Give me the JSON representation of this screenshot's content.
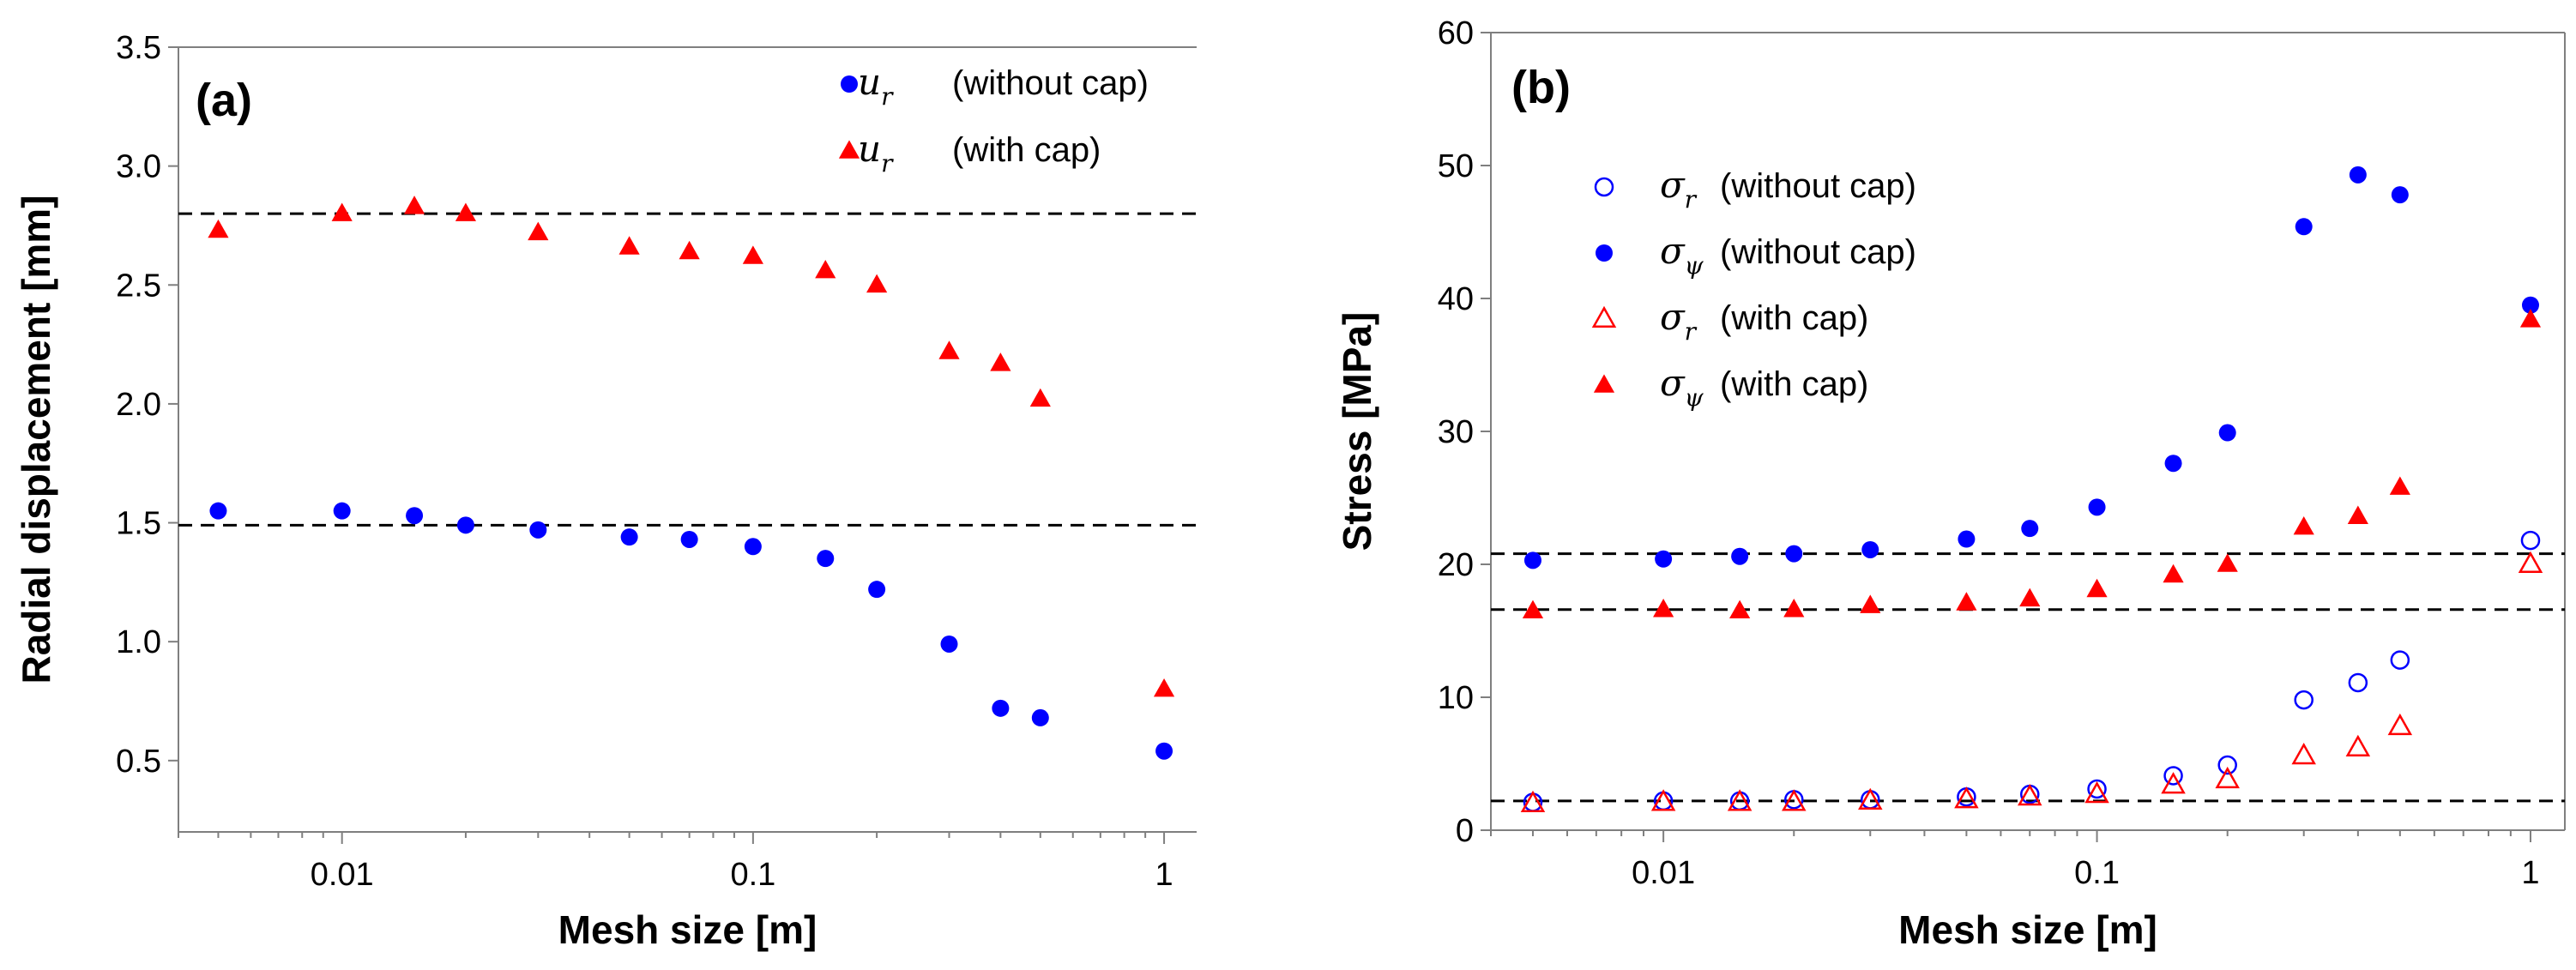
{
  "chart_data": [
    {
      "type": "scatter",
      "panel_label": "(a)",
      "xlabel": "Mesh size [m]",
      "ylabel": "Radial displacement [mm]",
      "x_scale": "log",
      "xlim": [
        0.004,
        1.2
      ],
      "ylim": [
        0.2,
        3.5
      ],
      "x_ticks": [
        0.01,
        0.1,
        1
      ],
      "x_tick_labels": [
        "0.01",
        "0.1",
        "1"
      ],
      "y_ticks": [
        0.5,
        1.0,
        1.5,
        2.0,
        2.5,
        3.0,
        3.5
      ],
      "y_tick_labels": [
        "0.5",
        "1.0",
        "1.5",
        "2.0",
        "2.5",
        "3.0",
        "3.5"
      ],
      "grid": false,
      "legend_position": "top-right",
      "reference_lines": [
        1.49,
        2.8
      ],
      "series": [
        {
          "name_symbol": "u",
          "name_sub": "r",
          "name_text": "(without cap)",
          "marker": "filled-circle",
          "color": "#0000ff",
          "x": [
            0.005,
            0.01,
            0.015,
            0.02,
            0.03,
            0.05,
            0.07,
            0.1,
            0.15,
            0.2,
            0.3,
            0.4,
            0.5,
            1
          ],
          "y": [
            1.55,
            1.55,
            1.53,
            1.49,
            1.47,
            1.44,
            1.43,
            1.4,
            1.35,
            1.22,
            0.99,
            0.72,
            0.68,
            0.54
          ]
        },
        {
          "name_symbol": "u",
          "name_sub": "r",
          "name_text": "(with cap)",
          "marker": "filled-triangle",
          "color": "#ff0000",
          "x": [
            0.005,
            0.01,
            0.015,
            0.02,
            0.03,
            0.05,
            0.07,
            0.1,
            0.15,
            0.2,
            0.3,
            0.4,
            0.5,
            1
          ],
          "y": [
            2.73,
            2.8,
            2.83,
            2.8,
            2.72,
            2.66,
            2.64,
            2.62,
            2.56,
            2.5,
            2.22,
            2.17,
            2.02,
            0.8
          ]
        }
      ]
    },
    {
      "type": "scatter",
      "panel_label": "(b)",
      "xlabel": "Mesh size [m]",
      "ylabel": "Stress [MPa]",
      "x_scale": "log",
      "xlim": [
        0.004,
        1.2
      ],
      "ylim": [
        0,
        60
      ],
      "x_ticks": [
        0.01,
        0.1,
        1
      ],
      "x_tick_labels": [
        "0.01",
        "0.1",
        "1"
      ],
      "y_ticks": [
        0,
        10,
        20,
        30,
        40,
        50,
        60
      ],
      "y_tick_labels": [
        "0",
        "10",
        "20",
        "30",
        "40",
        "50",
        "60"
      ],
      "grid": false,
      "legend_position": "top-left",
      "reference_lines": [
        20.8,
        16.6,
        2.2
      ],
      "series": [
        {
          "name_symbol": "σ",
          "name_sub": "r",
          "name_text": "(without cap)",
          "marker": "open-circle",
          "color": "#0000ff",
          "x": [
            0.005,
            0.01,
            0.015,
            0.02,
            0.03,
            0.05,
            0.07,
            0.1,
            0.15,
            0.2,
            0.3,
            0.4,
            0.5,
            1
          ],
          "y": [
            2.1,
            2.2,
            2.2,
            2.3,
            2.3,
            2.5,
            2.7,
            3.1,
            4.1,
            4.9,
            9.8,
            11.1,
            12.8,
            21.8
          ]
        },
        {
          "name_symbol": "σ",
          "name_sub": "ψ",
          "name_text": "(without cap)",
          "marker": "filled-circle",
          "color": "#0000ff",
          "x": [
            0.005,
            0.01,
            0.015,
            0.02,
            0.03,
            0.05,
            0.07,
            0.1,
            0.15,
            0.2,
            0.3,
            0.4,
            0.5,
            1
          ],
          "y": [
            20.3,
            20.4,
            20.6,
            20.8,
            21.1,
            21.9,
            22.7,
            24.3,
            27.6,
            29.9,
            45.4,
            49.3,
            47.8,
            39.5
          ]
        },
        {
          "name_symbol": "σ",
          "name_sub": "r",
          "name_text": "(with cap)",
          "marker": "open-triangle",
          "color": "#ff0000",
          "x": [
            0.005,
            0.01,
            0.015,
            0.02,
            0.03,
            0.05,
            0.07,
            0.1,
            0.15,
            0.2,
            0.3,
            0.4,
            0.5,
            1
          ],
          "y": [
            2.0,
            2.1,
            2.1,
            2.1,
            2.2,
            2.3,
            2.5,
            2.7,
            3.4,
            3.8,
            5.6,
            6.2,
            7.8,
            20.0
          ]
        },
        {
          "name_symbol": "σ",
          "name_sub": "ψ",
          "name_text": "(with cap)",
          "marker": "filled-triangle",
          "color": "#ff0000",
          "x": [
            0.005,
            0.01,
            0.015,
            0.02,
            0.03,
            0.05,
            0.07,
            0.1,
            0.15,
            0.2,
            0.3,
            0.4,
            0.5,
            1
          ],
          "y": [
            16.5,
            16.6,
            16.5,
            16.6,
            16.9,
            17.1,
            17.4,
            18.1,
            19.2,
            20.0,
            22.8,
            23.6,
            25.8,
            38.4
          ]
        }
      ]
    }
  ]
}
